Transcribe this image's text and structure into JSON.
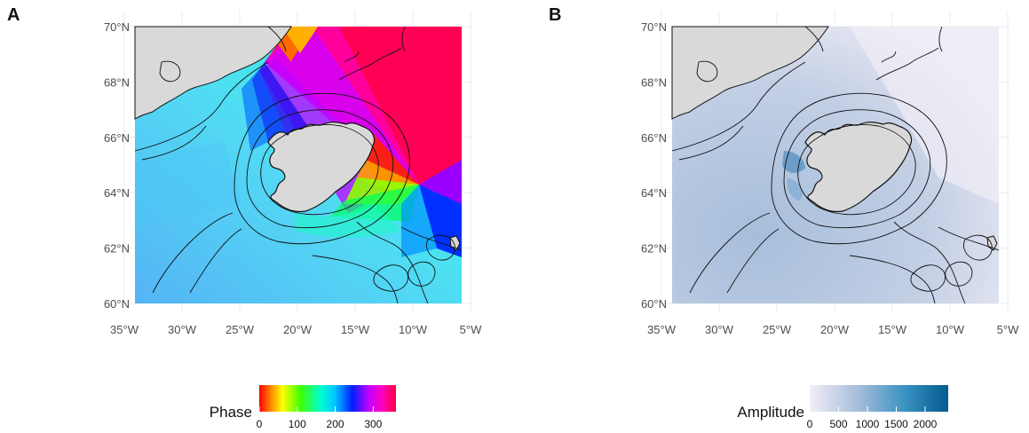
{
  "panels": [
    {
      "letter": "A",
      "legend": {
        "title": "Phase",
        "ticks": [
          "0",
          "100",
          "200",
          "300"
        ]
      },
      "colors": {
        "land": "#d9d9d9",
        "coast": "#111111"
      }
    },
    {
      "letter": "B",
      "legend": {
        "title": "Amplitude",
        "ticks": [
          "0",
          "500",
          "1000",
          "1500",
          "2000"
        ]
      },
      "colors": {
        "land": "#d9d9d9",
        "coast": "#111111",
        "low": "#f1eef6",
        "high": "#045a8d"
      }
    }
  ],
  "axes": {
    "lat_labels": [
      "60°N",
      "62°N",
      "64°N",
      "66°N",
      "68°N",
      "70°N"
    ],
    "lon_labels": [
      "35°W",
      "30°W",
      "25°W",
      "20°W",
      "15°W",
      "10°W",
      "5°W"
    ],
    "lat_range": [
      60,
      70
    ],
    "lon_range": [
      -34,
      -6
    ]
  }
}
